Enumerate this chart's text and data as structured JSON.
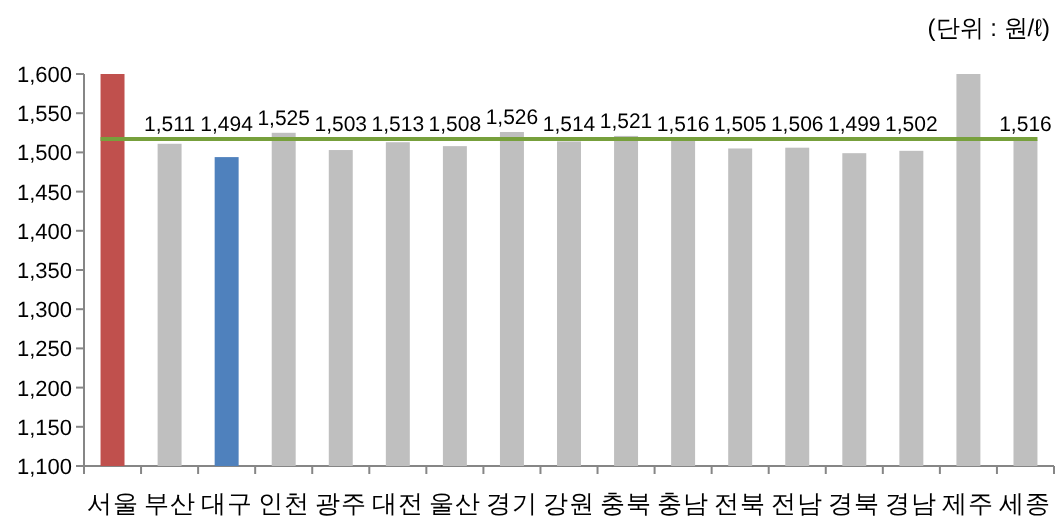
{
  "chart_data": {
    "type": "bar",
    "categories": [
      "서울",
      "부산",
      "대구",
      "인천",
      "광주",
      "대전",
      "울산",
      "경기",
      "강원",
      "충북",
      "충남",
      "전북",
      "전남",
      "경북",
      "경남",
      "제주",
      "세종"
    ],
    "values": [
      1600,
      1511,
      1494,
      1525,
      1503,
      1513,
      1508,
      1526,
      1514,
      1521,
      1516,
      1505,
      1506,
      1499,
      1502,
      1600,
      1516
    ],
    "colors": [
      "#c0504d",
      "#bfbfbf",
      "#4f81bd",
      "#bfbfbf",
      "#bfbfbf",
      "#bfbfbf",
      "#bfbfbf",
      "#bfbfbf",
      "#bfbfbf",
      "#bfbfbf",
      "#bfbfbf",
      "#bfbfbf",
      "#bfbfbf",
      "#bfbfbf",
      "#bfbfbf",
      "#bfbfbf",
      "#bfbfbf"
    ],
    "value_labels": [
      null,
      "1,511",
      "1,494",
      "1,525",
      "1,503",
      "1,513",
      "1,508",
      "1,526",
      "1,514",
      "1,521",
      "1,516",
      "1,505",
      "1,506",
      "1,499",
      "1,502",
      null,
      "1,516"
    ],
    "ylim": [
      1100,
      1600
    ],
    "yticks": [
      {
        "value": 1100,
        "label": "1,100"
      },
      {
        "value": 1150,
        "label": "1,150"
      },
      {
        "value": 1200,
        "label": "1,200"
      },
      {
        "value": 1250,
        "label": "1,250"
      },
      {
        "value": 1300,
        "label": "1,300"
      },
      {
        "value": 1350,
        "label": "1,350"
      },
      {
        "value": 1400,
        "label": "1,400"
      },
      {
        "value": 1450,
        "label": "1,450"
      },
      {
        "value": 1500,
        "label": "1,500"
      },
      {
        "value": 1550,
        "label": "1,550"
      },
      {
        "value": 1600,
        "label": "1,600"
      }
    ],
    "ref_lines": [
      {
        "axis": "y",
        "value": 1517,
        "color": "#77a03c"
      }
    ],
    "annotations": [
      "(단위 : 원/ℓ)"
    ],
    "grid": false
  }
}
